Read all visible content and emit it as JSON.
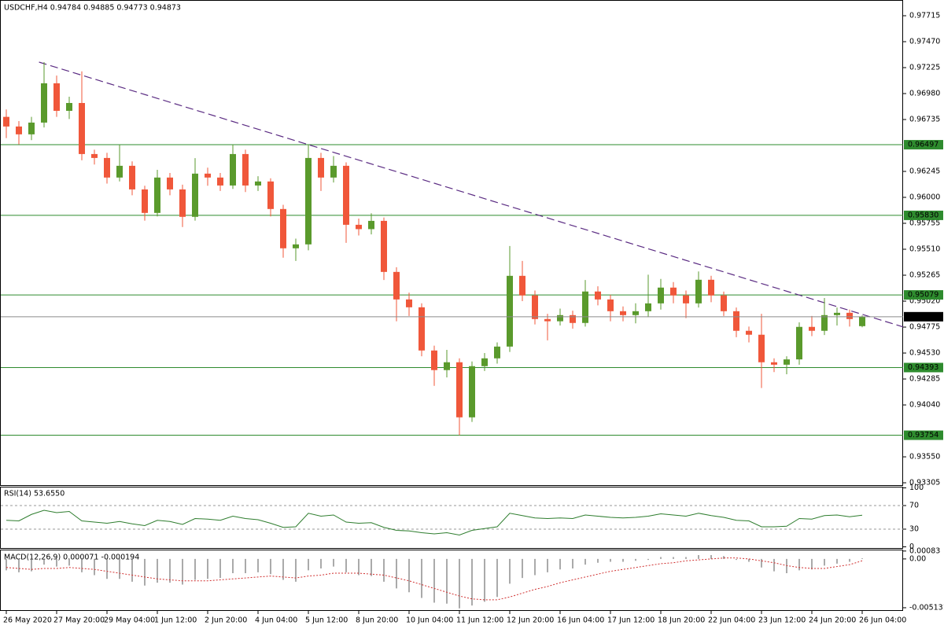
{
  "chart_data": [
    {
      "type": "candlestick",
      "title": "USDCHF,H4  0.94784 0.94885 0.94773 0.94873",
      "categories": [
        "26 May 2020",
        null,
        null,
        null,
        "27 May 20:00",
        null,
        null,
        null,
        "29 May 04:00",
        null,
        null,
        null,
        "1 Jun 12:00",
        null,
        null,
        null,
        "2 Jun 20:00",
        null,
        null,
        null,
        "4 Jun 04:00",
        null,
        null,
        null,
        "5 Jun 12:00",
        null,
        null,
        null,
        "8 Jun 20:00",
        null,
        null,
        null,
        "10 Jun 04:00",
        null,
        null,
        null,
        "11 Jun 12:00",
        null,
        null,
        null,
        "12 Jun 20:00",
        null,
        null,
        null,
        "16 Jun 04:00",
        null,
        null,
        null,
        "17 Jun 12:00",
        null,
        null,
        null,
        "18 Jun 20:00",
        null,
        null,
        null,
        "22 Jun 04:00",
        null,
        null,
        null,
        "23 Jun 12:00",
        null,
        null,
        null,
        "24 Jun 20:00",
        null,
        null,
        null,
        "26 Jun 04:00"
      ],
      "open": [
        0.9676,
        0.96669,
        0.96595,
        0.96706,
        0.97077,
        0.96817,
        0.96891,
        0.96409,
        0.96372,
        0.96187,
        0.96298,
        0.96075,
        0.95853,
        0.96187,
        0.96075,
        0.95816,
        0.96224,
        0.96187,
        0.96112,
        0.96409,
        0.96112,
        0.9615,
        0.9589,
        0.95519,
        0.95556,
        0.96372,
        0.96187,
        0.96298,
        0.95741,
        0.957,
        0.95778,
        0.95296,
        0.95036,
        0.94962,
        0.94554,
        0.94369,
        0.94443,
        0.93923,
        0.94406,
        0.9448,
        0.94591,
        0.95259,
        0.95074,
        0.94851,
        0.9483,
        0.94888,
        0.94814,
        0.95111,
        0.95036,
        0.94925,
        0.94888,
        0.94925,
        0.94999,
        0.95148,
        0.95074,
        0.94999,
        0.95222,
        0.95074,
        0.94925,
        0.9474,
        0.94703,
        0.94443,
        0.9442,
        0.9447,
        0.94777,
        0.9474,
        0.94888,
        0.9491,
        0.94784
      ],
      "high": [
        0.9683,
        0.9672,
        0.9676,
        0.97277,
        0.9715,
        0.9695,
        0.9719,
        0.9645,
        0.9642,
        0.96497,
        0.9634,
        0.9611,
        0.9626,
        0.9623,
        0.9612,
        0.9637,
        0.9628,
        0.9623,
        0.96497,
        0.9645,
        0.962,
        0.9618,
        0.9593,
        0.9561,
        0.96497,
        0.9642,
        0.9639,
        0.9633,
        0.958,
        0.9585,
        0.9581,
        0.9534,
        0.951,
        0.95,
        0.946,
        0.9456,
        0.9448,
        0.9445,
        0.9453,
        0.9463,
        0.95541,
        0.954,
        0.9512,
        0.949,
        0.9495,
        0.9493,
        0.9522,
        0.9516,
        0.9508,
        0.9497,
        0.95,
        0.9527,
        0.9523,
        0.952,
        0.9512,
        0.953,
        0.9526,
        0.9511,
        0.9496,
        0.9478,
        0.949,
        0.9448,
        0.945,
        0.9482,
        0.9488,
        0.9505,
        0.9496,
        0.9494,
        0.94885
      ],
      "low": [
        0.9656,
        0.965,
        0.9654,
        0.9666,
        0.9676,
        0.9674,
        0.9635,
        0.9631,
        0.9613,
        0.9615,
        0.9602,
        0.9578,
        0.9582,
        0.9602,
        0.9572,
        0.9578,
        0.9611,
        0.9606,
        0.9608,
        0.9605,
        0.9606,
        0.9582,
        0.9543,
        0.954,
        0.955,
        0.9606,
        0.9614,
        0.9557,
        0.9564,
        0.9565,
        0.9522,
        0.9483,
        0.9488,
        0.945,
        0.9422,
        0.943,
        0.93754,
        0.9388,
        0.9436,
        0.9443,
        0.9454,
        0.9502,
        0.948,
        0.9465,
        0.9479,
        0.9476,
        0.9478,
        0.9498,
        0.9483,
        0.9483,
        0.9481,
        0.9487,
        0.9494,
        0.95,
        0.9486,
        0.9496,
        0.9501,
        0.9488,
        0.9468,
        0.9463,
        0.942,
        0.9435,
        0.9433,
        0.9442,
        0.9469,
        0.947,
        0.9479,
        0.9478,
        0.94773
      ],
      "close": [
        0.96669,
        0.96595,
        0.96706,
        0.97077,
        0.96817,
        0.96891,
        0.96409,
        0.96372,
        0.96187,
        0.96298,
        0.96075,
        0.95853,
        0.96187,
        0.96075,
        0.95816,
        0.96224,
        0.96187,
        0.96112,
        0.96409,
        0.96112,
        0.9615,
        0.9589,
        0.95519,
        0.95556,
        0.96372,
        0.96187,
        0.96298,
        0.95741,
        0.957,
        0.95778,
        0.95296,
        0.95036,
        0.94962,
        0.94554,
        0.94369,
        0.94443,
        0.93923,
        0.94406,
        0.9448,
        0.94591,
        0.95259,
        0.95074,
        0.94851,
        0.9483,
        0.94888,
        0.94814,
        0.95111,
        0.95036,
        0.94925,
        0.94888,
        0.94925,
        0.94999,
        0.95148,
        0.95074,
        0.94999,
        0.95222,
        0.95074,
        0.94925,
        0.9474,
        0.94703,
        0.94443,
        0.9442,
        0.9447,
        0.94777,
        0.9474,
        0.94888,
        0.9491,
        0.94851,
        0.94873
      ],
      "up_color": "#5a9a2c",
      "down_color": "#f0573a",
      "xlim": [
        -0.5,
        71.25
      ],
      "ylim": [
        0.93283,
        0.97856
      ],
      "yticks": [
        0.97715,
        {
          "value": 0.9747,
          "label": "0.97470"
        },
        0.97225,
        {
          "value": 0.9698,
          "label": "0.96980"
        },
        0.96735,
        0.96245,
        {
          "value": 0.96,
          "label": "0.96000"
        },
        0.95755,
        {
          "value": 0.9551,
          "label": "0.95510"
        },
        0.95265,
        {
          "value": 0.9502,
          "label": "0.95020"
        },
        0.94775,
        {
          "value": 0.9453,
          "label": "0.94530"
        },
        0.94285,
        {
          "value": 0.9404,
          "label": "0.94040"
        },
        {
          "value": 0.9355,
          "label": "0.93550"
        },
        0.93305
      ],
      "levels": [
        0.96497,
        {
          "value": 0.9583,
          "label": "0.95830"
        },
        0.95079,
        0.94393,
        0.93754
      ],
      "level_color": "#2e8b2e",
      "trendline": {
        "x": [
          2.6,
          71.25
        ],
        "y": [
          0.97277,
          0.94777
        ],
        "color": "#5b2c83"
      }
    },
    {
      "type": "line",
      "title": "RSI(14) 53.6550",
      "color": "#2e7d2e",
      "values": [
        45,
        44,
        55,
        62,
        58,
        60,
        44,
        42,
        40,
        43,
        39,
        36,
        45,
        43,
        38,
        48,
        47,
        45,
        52,
        48,
        46,
        40,
        33,
        34,
        57,
        52,
        54,
        42,
        40,
        41,
        33,
        28,
        27,
        24,
        22,
        24,
        20,
        28,
        31,
        34,
        57,
        53,
        49,
        48,
        49,
        48,
        54,
        52,
        50,
        49,
        50,
        52,
        56,
        54,
        52,
        57,
        53,
        50,
        45,
        44,
        34,
        34,
        35,
        48,
        47,
        53,
        54,
        51,
        53.655
      ],
      "ylim": [
        0,
        100
      ],
      "yticks": [
        0,
        30,
        70,
        100
      ],
      "levels": [
        30,
        70
      ]
    },
    {
      "type": "macd",
      "title": "MACD(12,26,9) 0.000071 -0.000194",
      "series": [
        {
          "name": "MACD",
          "color": "#555555",
          "values": [
            -0.0012,
            -0.0014,
            -0.0013,
            -0.0006,
            -0.0008,
            -0.0007,
            -0.0014,
            -0.0017,
            -0.0021,
            -0.0021,
            -0.0024,
            -0.0028,
            -0.0025,
            -0.0025,
            -0.0027,
            -0.0022,
            -0.0021,
            -0.002,
            -0.0015,
            -0.0015,
            -0.0014,
            -0.0016,
            -0.0022,
            -0.0024,
            -0.0012,
            -0.001,
            -0.0008,
            -0.0014,
            -0.0017,
            -0.0018,
            -0.0024,
            -0.0031,
            -0.0035,
            -0.0041,
            -0.0046,
            -0.0047,
            -0.0052,
            -0.0049,
            -0.0045,
            -0.004,
            -0.0026,
            -0.002,
            -0.0017,
            -0.0014,
            -0.0011,
            -0.001,
            -0.0006,
            -0.0004,
            -0.0003,
            -0.0003,
            -0.0002,
            -0.0001,
            0.0002,
            0.0002,
            0.0002,
            0.0004,
            0.0004,
            0.0003,
            -0.0001,
            -0.0003,
            -0.0009,
            -0.0013,
            -0.0015,
            -0.0012,
            -0.0011,
            -0.0007,
            -0.0005,
            -0.0003,
            7.1e-05
          ]
        },
        {
          "name": "Signal",
          "color": "#d03030",
          "values": [
            -0.0009,
            -0.001,
            -0.0011,
            -0.001,
            -0.001,
            -0.0009,
            -0.001,
            -0.0011,
            -0.0013,
            -0.0015,
            -0.0017,
            -0.0019,
            -0.0021,
            -0.0022,
            -0.0023,
            -0.0023,
            -0.0023,
            -0.0022,
            -0.0021,
            -0.002,
            -0.0019,
            -0.0018,
            -0.0019,
            -0.002,
            -0.0018,
            -0.0017,
            -0.0015,
            -0.0015,
            -0.0015,
            -0.0016,
            -0.0017,
            -0.002,
            -0.0023,
            -0.0027,
            -0.0031,
            -0.0035,
            -0.0039,
            -0.0042,
            -0.0043,
            -0.0043,
            -0.004,
            -0.0036,
            -0.0032,
            -0.0029,
            -0.0025,
            -0.0022,
            -0.0019,
            -0.0016,
            -0.0013,
            -0.0011,
            -0.0009,
            -0.0007,
            -0.0005,
            -0.0004,
            -0.0002,
            -0.0001,
            0,
            0.0001,
            0.0001,
            0,
            -0.0002,
            -0.0004,
            -0.0007,
            -0.0009,
            -0.001,
            -0.001,
            -0.0008,
            -0.0006,
            -0.000194
          ]
        }
      ],
      "ylim": [
        -0.0053,
        0.0009
      ],
      "yticks": [
        {
          "value": 0.00083,
          "label": "0.00083"
        },
        {
          "value": 0,
          "label": "0.00"
        },
        {
          "value": -0.005131,
          "label": "-0.005131"
        }
      ]
    }
  ]
}
